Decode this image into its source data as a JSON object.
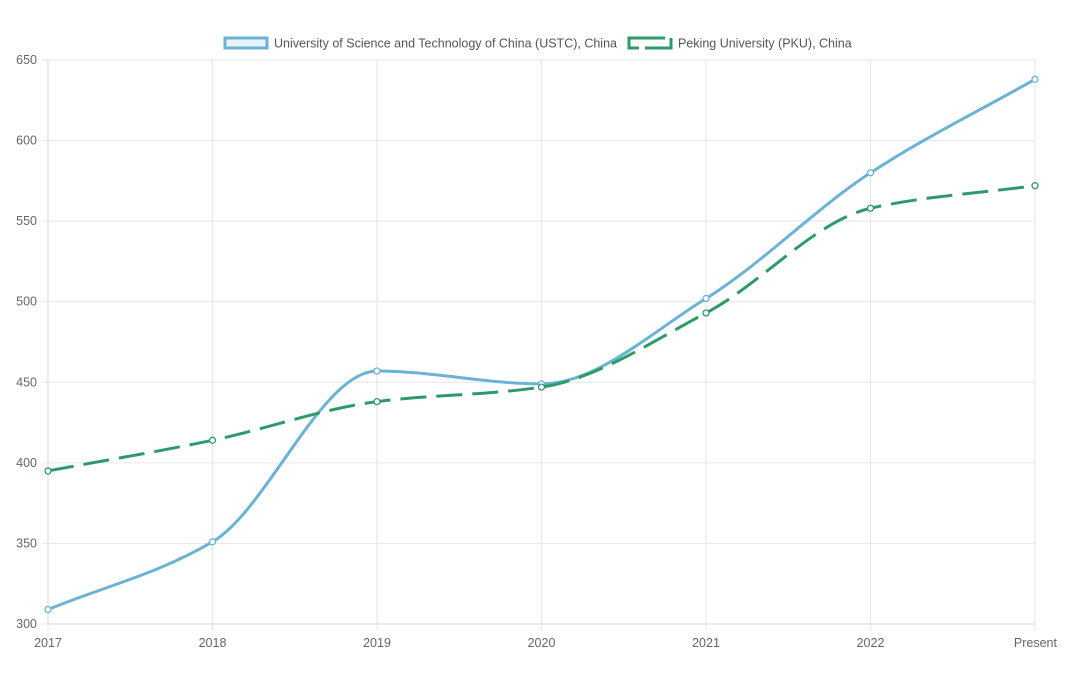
{
  "chart_data": {
    "type": "line",
    "categories": [
      "2017",
      "2018",
      "2019",
      "2020",
      "2021",
      "2022",
      "Present"
    ],
    "series": [
      {
        "name": "University of Science and Technology of China (USTC), China",
        "values": [
          309,
          351,
          457,
          449,
          502,
          580,
          638
        ],
        "color": "#6bb3d6",
        "dashed": false,
        "smooth": true
      },
      {
        "name": "Peking University (PKU), China",
        "values": [
          395,
          414,
          438,
          447,
          493,
          558,
          572
        ],
        "color": "#2e9a6a",
        "dashed": true,
        "smooth": true
      }
    ],
    "y_ticks": [
      "300",
      "350",
      "400",
      "450",
      "500",
      "550",
      "600",
      "650"
    ],
    "ylim": [
      300,
      650
    ],
    "grid": true,
    "legend_position": "top-center",
    "title": "",
    "xlabel": "",
    "ylabel": ""
  }
}
